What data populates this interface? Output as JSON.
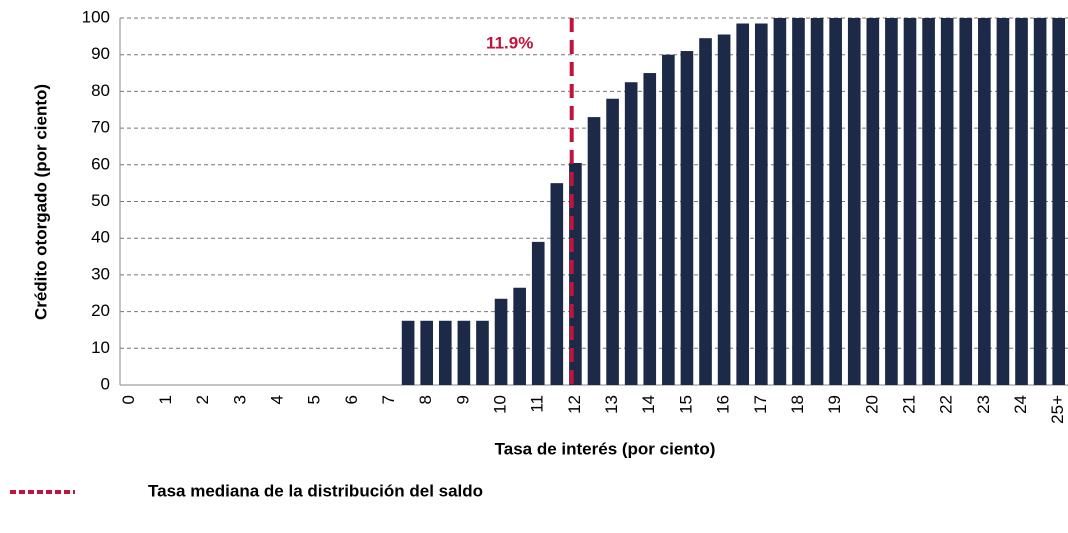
{
  "chart_data": {
    "type": "bar",
    "y_label": "Crédito otorgado (por ciento)",
    "x_label": "Tasa de interés (por ciento)",
    "categories": [
      "0",
      null,
      "1",
      null,
      "2",
      null,
      "3",
      null,
      "4",
      null,
      "5",
      null,
      "6",
      null,
      "7",
      null,
      "8",
      null,
      "9",
      null,
      "10",
      null,
      "11",
      null,
      "12",
      null,
      "13",
      null,
      "14",
      null,
      "15",
      null,
      "16",
      null,
      "17",
      null,
      "18",
      null,
      "19",
      null,
      "20",
      null,
      "21",
      null,
      "22",
      null,
      "23",
      null,
      "24",
      null,
      "25+"
    ],
    "values": [
      0,
      0,
      0,
      0,
      0,
      0,
      0,
      0,
      0,
      0,
      0,
      0,
      0,
      0,
      0,
      17.5,
      17.5,
      17.5,
      17.5,
      17.5,
      23.5,
      26.5,
      39,
      55,
      60.5,
      73,
      78,
      82.5,
      85,
      90,
      91,
      94.5,
      95.5,
      98.5,
      98.5,
      100,
      100,
      100,
      100,
      100,
      100,
      100,
      100,
      100,
      100,
      100,
      100,
      100,
      100,
      100,
      100
    ],
    "color": "#1c2a48",
    "ylim": [
      0,
      100
    ],
    "yticks": [
      0,
      10,
      20,
      30,
      40,
      50,
      60,
      70,
      80,
      90,
      100
    ],
    "grid": true,
    "median": {
      "value": 11.9,
      "label": "11.9%",
      "color": "#c0143c"
    },
    "legend": "Tasa mediana de la distribución del saldo"
  }
}
